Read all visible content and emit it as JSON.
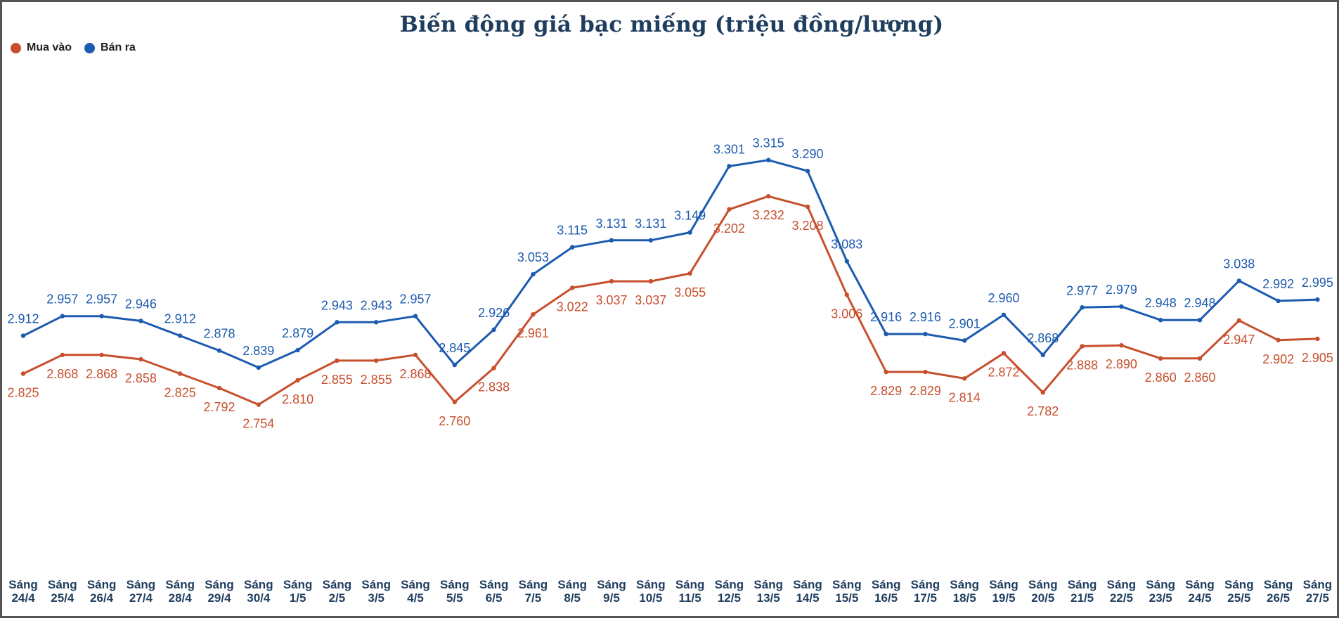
{
  "chart_data": {
    "type": "line",
    "title": "Biến động giá bạc miếng (triệu đồng/lượng)",
    "xlabel": "",
    "ylabel": "",
    "legend_position": "top-left",
    "grid": false,
    "ylim": [
      2.0,
      3.6
    ],
    "categories": [
      "Sáng\n24/4",
      "Sáng\n25/4",
      "Sáng\n26/4",
      "Sáng\n27/4",
      "Sáng\n28/4",
      "Sáng\n29/4",
      "Sáng\n30/4",
      "Sáng\n1/5",
      "Sáng\n2/5",
      "Sáng\n3/5",
      "Sáng\n4/5",
      "Sáng\n5/5",
      "Sáng\n6/5",
      "Sáng\n7/5",
      "Sáng\n8/5",
      "Sáng\n9/5",
      "Sáng\n10/5",
      "Sáng\n11/5",
      "Sáng\n12/5",
      "Sáng\n13/5",
      "Sáng\n14/5",
      "Sáng\n15/5",
      "Sáng\n16/5",
      "Sáng\n17/5",
      "Sáng\n18/5",
      "Sáng\n19/5",
      "Sáng\n20/5",
      "Sáng\n21/5",
      "Sáng\n22/5",
      "Sáng\n23/5",
      "Sáng\n24/5",
      "Sáng\n25/5",
      "Sáng\n26/5",
      "Sáng\n27/5"
    ],
    "series": [
      {
        "name": "Mua vào",
        "color": "#c84f2e",
        "values": [
          2.825,
          2.868,
          2.868,
          2.858,
          2.825,
          2.792,
          2.754,
          2.81,
          2.855,
          2.855,
          2.868,
          2.76,
          2.838,
          2.961,
          3.022,
          3.037,
          3.037,
          3.055,
          3.202,
          3.232,
          3.208,
          3.006,
          2.829,
          2.829,
          2.814,
          2.872,
          2.782,
          2.888,
          2.89,
          2.86,
          2.86,
          2.947,
          2.902,
          2.905
        ],
        "labels": [
          "2.825",
          "2.868",
          "2.868",
          "2.858",
          "2.825",
          "2.792",
          "2.754",
          "2.810",
          "2.855",
          "2.855",
          "2.868",
          "2.760",
          "2.838",
          "2.961",
          "3.022",
          "3.037",
          "3.037",
          "3.055",
          "3.202",
          "3.232",
          "3.208",
          "3.006",
          "2.829",
          "2.829",
          "2.814",
          "2.872",
          "2.782",
          "2.888",
          "2.890",
          "2.860",
          "2.860",
          "2.947",
          "2.902",
          "2.905"
        ]
      },
      {
        "name": "Bán ra",
        "color": "#1d5bb0",
        "values": [
          2.912,
          2.957,
          2.957,
          2.946,
          2.912,
          2.878,
          2.839,
          2.879,
          2.943,
          2.943,
          2.957,
          2.845,
          2.926,
          3.053,
          3.115,
          3.131,
          3.131,
          3.149,
          3.301,
          3.315,
          3.29,
          3.083,
          2.916,
          2.916,
          2.901,
          2.96,
          2.868,
          2.977,
          2.979,
          2.948,
          2.948,
          3.038,
          2.992,
          2.995
        ],
        "labels": [
          "2.912",
          "2.957",
          "2.957",
          "2.946",
          "2.912",
          "2.878",
          "2.839",
          "2.879",
          "2.943",
          "2.943",
          "2.957",
          "2.845",
          "2.926",
          "3.053",
          "3.115",
          "3.131",
          "3.131",
          "3.149",
          "3.301",
          "3.315",
          "3.290",
          "3.083",
          "2.916",
          "2.916",
          "2.901",
          "2.960",
          "2.868",
          "2.977",
          "2.979",
          "2.948",
          "2.948",
          "3.038",
          "2.992",
          "2.995"
        ]
      }
    ]
  },
  "colors": {
    "title": "#1f3d5e",
    "axis_text": "#1f3d5e",
    "background": "#ffffff"
  }
}
